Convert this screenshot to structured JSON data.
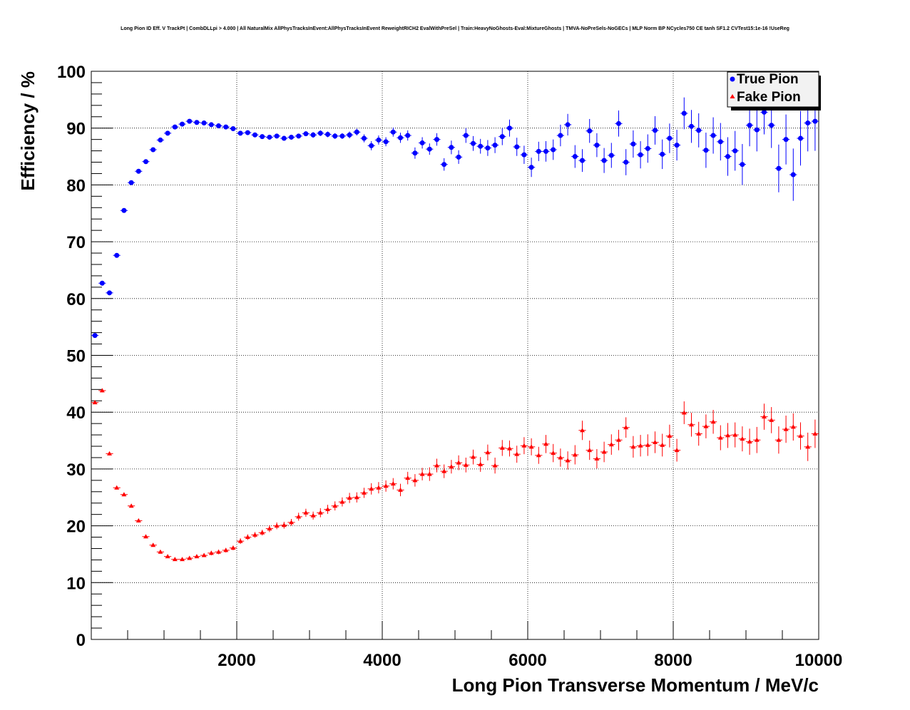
{
  "chart_data": {
    "type": "scatter",
    "title": "Long Pion ID Eff. V TrackPt | CombDLLpi > 4.000 | All NaturalMix AllPhysTracksInEvent:AllPhysTracksInEvent ReweightRICH2 EvalWithPreSel | Train:HeavyNoGhosts-Eval:MixtureGhosts | TMVA-NoPreSels-NoGECs | MLP Norm BP NCycles750 CE tanh SF1.2 CVTest15:1e-16 !UseReg",
    "xlabel": "Long Pion Transverse Momentum / MeV/c",
    "ylabel": "Efficiency / %",
    "xlim": [
      0,
      10000
    ],
    "ylim": [
      0,
      100
    ],
    "x_ticks": [
      2000,
      4000,
      6000,
      8000,
      10000
    ],
    "y_ticks": [
      0,
      10,
      20,
      30,
      40,
      50,
      60,
      70,
      80,
      90,
      100
    ],
    "grid": true,
    "legend_position": "top-right",
    "x_bin_width": 100,
    "series": [
      {
        "name": "True Pion",
        "color": "#0000ff",
        "marker": "circle",
        "x": [
          50,
          150,
          250,
          350,
          450,
          550,
          650,
          750,
          850,
          950,
          1050,
          1150,
          1250,
          1350,
          1450,
          1550,
          1650,
          1750,
          1850,
          1950,
          2050,
          2150,
          2250,
          2350,
          2450,
          2550,
          2650,
          2750,
          2850,
          2950,
          3050,
          3150,
          3250,
          3350,
          3450,
          3550,
          3650,
          3750,
          3850,
          3950,
          4050,
          4150,
          4250,
          4350,
          4450,
          4550,
          4650,
          4750,
          4850,
          4950,
          5050,
          5150,
          5250,
          5350,
          5450,
          5550,
          5650,
          5750,
          5850,
          5950,
          6050,
          6150,
          6250,
          6350,
          6450,
          6550,
          6650,
          6750,
          6850,
          6950,
          7050,
          7150,
          7250,
          7350,
          7450,
          7550,
          7650,
          7750,
          7850,
          7950,
          8050,
          8150,
          8250,
          8350,
          8450,
          8550,
          8650,
          8750,
          8850,
          8950,
          9050,
          9150,
          9250,
          9350,
          9450,
          9550,
          9650,
          9750,
          9850,
          9950
        ],
        "y": [
          53.5,
          62.7,
          61.0,
          67.6,
          75.5,
          80.4,
          82.4,
          84.1,
          86.2,
          87.9,
          89.1,
          90.2,
          90.7,
          91.2,
          91.0,
          90.9,
          90.6,
          90.4,
          90.2,
          89.9,
          89.1,
          89.2,
          88.8,
          88.5,
          88.4,
          88.6,
          88.2,
          88.4,
          88.6,
          89.0,
          88.8,
          89.1,
          88.9,
          88.6,
          88.6,
          88.8,
          89.3,
          88.2,
          86.9,
          87.9,
          87.6,
          89.3,
          88.3,
          88.7,
          85.6,
          87.4,
          86.3,
          88.0,
          83.6,
          86.6,
          84.9,
          88.7,
          87.3,
          86.8,
          86.5,
          87.0,
          88.5,
          90.0,
          86.7,
          85.3,
          83.1,
          85.9,
          85.9,
          86.2,
          88.7,
          90.6,
          85.0,
          84.3,
          89.5,
          87.0,
          84.3,
          85.2,
          90.8,
          84.0,
          87.2,
          85.3,
          86.4,
          89.6,
          85.4,
          88.2,
          87.0,
          92.6,
          90.3,
          89.6,
          86.1,
          88.7,
          87.6,
          85.0,
          86.0,
          83.6,
          90.5,
          89.7,
          92.8,
          90.5,
          82.9,
          88.0,
          81.8,
          88.2,
          90.9,
          91.2
        ],
        "yerr": [
          0.3,
          0.3,
          0.3,
          0.3,
          0.3,
          0.3,
          0.3,
          0.3,
          0.3,
          0.3,
          0.3,
          0.3,
          0.3,
          0.3,
          0.3,
          0.3,
          0.3,
          0.3,
          0.3,
          0.3,
          0.4,
          0.4,
          0.4,
          0.4,
          0.4,
          0.4,
          0.4,
          0.4,
          0.4,
          0.4,
          0.5,
          0.5,
          0.5,
          0.5,
          0.5,
          0.6,
          0.6,
          0.7,
          0.8,
          0.8,
          0.8,
          0.8,
          0.9,
          0.9,
          1.0,
          1.0,
          1.0,
          1.1,
          1.1,
          1.2,
          1.2,
          1.3,
          1.3,
          1.3,
          1.4,
          1.4,
          1.5,
          1.5,
          1.6,
          1.6,
          1.7,
          1.7,
          1.8,
          1.8,
          1.9,
          1.9,
          2.0,
          2.0,
          2.1,
          2.1,
          2.2,
          2.2,
          2.3,
          2.3,
          2.4,
          2.4,
          2.5,
          2.5,
          2.6,
          2.6,
          2.7,
          2.8,
          2.9,
          3.0,
          3.1,
          3.2,
          3.3,
          3.4,
          3.5,
          3.6,
          3.7,
          3.8,
          3.9,
          4.0,
          4.2,
          4.4,
          4.6,
          4.8,
          5.0,
          5.2
        ]
      },
      {
        "name": "Fake Pion",
        "color": "#ff0000",
        "marker": "triangle",
        "x": [
          50,
          150,
          250,
          350,
          450,
          550,
          650,
          750,
          850,
          950,
          1050,
          1150,
          1250,
          1350,
          1450,
          1550,
          1650,
          1750,
          1850,
          1950,
          2050,
          2150,
          2250,
          2350,
          2450,
          2550,
          2650,
          2750,
          2850,
          2950,
          3050,
          3150,
          3250,
          3350,
          3450,
          3550,
          3650,
          3750,
          3850,
          3950,
          4050,
          4150,
          4250,
          4350,
          4450,
          4550,
          4650,
          4750,
          4850,
          4950,
          5050,
          5150,
          5250,
          5350,
          5450,
          5550,
          5650,
          5750,
          5850,
          5950,
          6050,
          6150,
          6250,
          6350,
          6450,
          6550,
          6650,
          6750,
          6850,
          6950,
          7050,
          7150,
          7250,
          7350,
          7450,
          7550,
          7650,
          7750,
          7850,
          7950,
          8050,
          8150,
          8250,
          8350,
          8450,
          8550,
          8650,
          8750,
          8850,
          8950,
          9050,
          9150,
          9250,
          9350,
          9450,
          9550,
          9650,
          9750,
          9850,
          9950
        ],
        "y": [
          41.7,
          43.8,
          32.7,
          26.7,
          25.5,
          23.5,
          20.9,
          18.1,
          16.6,
          15.4,
          14.6,
          14.1,
          14.1,
          14.3,
          14.6,
          14.8,
          15.2,
          15.4,
          15.7,
          16.1,
          17.3,
          18.0,
          18.4,
          18.8,
          19.5,
          20.0,
          20.1,
          20.6,
          21.6,
          22.3,
          21.8,
          22.3,
          22.9,
          23.5,
          24.2,
          24.9,
          25.0,
          25.8,
          26.5,
          26.7,
          27.0,
          27.4,
          26.3,
          28.4,
          28.0,
          29.1,
          29.1,
          30.6,
          29.6,
          30.4,
          31.1,
          30.7,
          32.1,
          30.8,
          32.9,
          30.6,
          33.7,
          33.6,
          32.6,
          34.1,
          33.9,
          32.4,
          34.4,
          32.8,
          32.0,
          31.5,
          32.5,
          36.8,
          33.3,
          31.8,
          33.0,
          34.3,
          35.1,
          37.3,
          33.9,
          34.1,
          34.2,
          34.7,
          34.2,
          35.8,
          33.3,
          39.9,
          37.8,
          36.2,
          37.5,
          38.3,
          35.5,
          35.9,
          36.0,
          35.3,
          34.8,
          35.1,
          39.2,
          38.6,
          35.1,
          37.0,
          37.4,
          35.8,
          33.9,
          36.2
        ],
        "yerr": [
          0.3,
          0.3,
          0.3,
          0.3,
          0.3,
          0.3,
          0.3,
          0.3,
          0.3,
          0.3,
          0.3,
          0.3,
          0.3,
          0.3,
          0.3,
          0.3,
          0.4,
          0.4,
          0.4,
          0.4,
          0.5,
          0.5,
          0.5,
          0.5,
          0.6,
          0.6,
          0.6,
          0.6,
          0.7,
          0.7,
          0.7,
          0.8,
          0.8,
          0.8,
          0.8,
          0.9,
          0.9,
          0.9,
          1.0,
          1.0,
          1.0,
          1.0,
          1.1,
          1.1,
          1.1,
          1.1,
          1.2,
          1.2,
          1.2,
          1.2,
          1.3,
          1.3,
          1.3,
          1.3,
          1.4,
          1.4,
          1.4,
          1.4,
          1.5,
          1.5,
          1.5,
          1.5,
          1.6,
          1.6,
          1.6,
          1.6,
          1.7,
          1.7,
          1.7,
          1.7,
          1.8,
          1.8,
          1.8,
          1.8,
          1.9,
          1.9,
          1.9,
          1.9,
          2.0,
          2.0,
          2.0,
          2.0,
          2.1,
          2.1,
          2.1,
          2.1,
          2.2,
          2.2,
          2.2,
          2.2,
          2.3,
          2.3,
          2.3,
          2.3,
          2.4,
          2.4,
          2.4,
          2.4,
          2.5,
          2.5
        ]
      }
    ]
  }
}
